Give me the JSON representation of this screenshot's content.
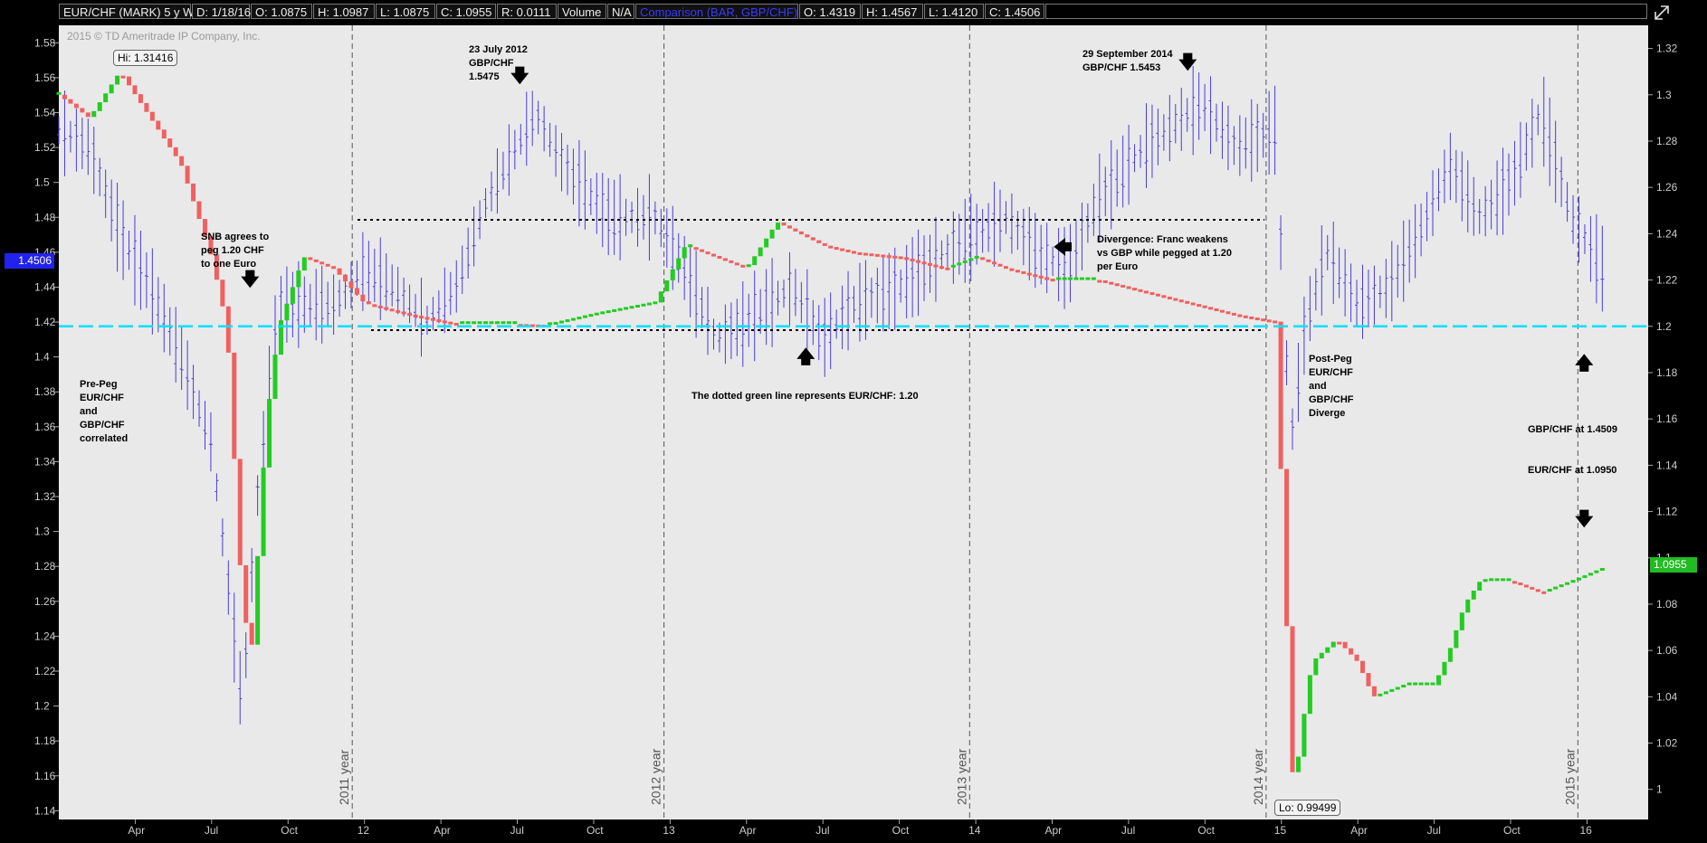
{
  "header": {
    "symbol": "EUR/CHF (MARK) 5 y W",
    "date": "D: 1/18/16",
    "open": "O: 1.0875",
    "high": "H: 1.0987",
    "low": "L: 1.0875",
    "close": "C: 1.0955",
    "range": "R: 0.0111",
    "volume_label": "Volume",
    "volume_value": "N/A",
    "comparison": "Comparison (BAR, GBP/CHF)",
    "comp_open": "O: 1.4319",
    "comp_high": "H: 1.4567",
    "comp_low": "L: 1.4120",
    "comp_close": "C: 1.4506"
  },
  "watermark": "2015 © TD Ameritrade IP Company, Inc.",
  "colors": {
    "background": "#e9e9e9",
    "up_candle": "#22cc22",
    "down_candle": "#f06060",
    "comparison_bar": "#4b3bd9",
    "peg_line": "#00e0ff",
    "left_price_box": "#2222ee",
    "right_price_box": "#22bb22"
  },
  "badges": {
    "high": "Hi: 1.31416",
    "low": "Lo: 0.99499",
    "left_current": "1.4506",
    "right_current": "1.0955"
  },
  "annotations": {
    "pre_peg": "Pre-Peg\nEUR/CHF\nand\nGBP/CHF\ncorrelated",
    "snb": "SNB agrees to\npeg 1.20 CHF\nto one Euro",
    "july2012": "23 July 2012\nGBP/CHF\n1.5475",
    "sept2014": "29 September 2014\nGBP/CHF 1.5453",
    "divergence": "Divergence: Franc weakens\nvs GBP while pegged at 1.20\nper Euro",
    "dotted": "The dotted green line represents EUR/CHF: 1.20",
    "post_peg": "Post-Peg\nEUR/CHF\nand\nGBP/CHF\nDiverge",
    "gbp_now": "GBP/CHF at 1.4509",
    "eur_now": "EUR/CHF at 1.0950"
  },
  "chart_data": {
    "type": "bar",
    "title": "EUR/CHF (MARK) 5 y W",
    "comparison_series_name": "GBP/CHF",
    "left_axis_ticks": [
      "1.58",
      "1.56",
      "1.54",
      "1.52",
      "1.5",
      "1.48",
      "1.46",
      "1.44",
      "1.42",
      "1.4",
      "1.38",
      "1.36",
      "1.34",
      "1.32",
      "1.3",
      "1.28",
      "1.26",
      "1.24",
      "1.22",
      "1.2",
      "1.18",
      "1.16",
      "1.14"
    ],
    "left_axis_range": [
      1.135,
      1.59
    ],
    "right_axis_ticks": [
      "1.32",
      "1.3",
      "1.28",
      "1.26",
      "1.24",
      "1.22",
      "1.2",
      "1.18",
      "1.16",
      "1.14",
      "1.12",
      "1.1",
      "1.08",
      "1.06",
      "1.04",
      "1.02",
      "1"
    ],
    "right_axis_range": [
      0.987,
      1.33
    ],
    "x_tick_labels": [
      "Apr",
      "Jul",
      "Oct",
      "12",
      "Apr",
      "Jul",
      "Oct",
      "13",
      "Apr",
      "Jul",
      "Oct",
      "14",
      "Apr",
      "Jul",
      "Oct",
      "15",
      "Apr",
      "Jul",
      "Oct",
      "16"
    ],
    "year_labels": [
      "2011 year",
      "2012 year",
      "2013 year",
      "2014 year",
      "2015 year"
    ],
    "peg_level": 1.2,
    "eurchf_weekly_path": [
      [
        2011.0,
        1.3
      ],
      [
        2011.1,
        1.29
      ],
      [
        2011.2,
        1.31
      ],
      [
        2011.3,
        1.29
      ],
      [
        2011.4,
        1.27
      ],
      [
        2011.5,
        1.23
      ],
      [
        2011.55,
        1.2
      ],
      [
        2011.6,
        1.08
      ],
      [
        2011.63,
        1.06
      ],
      [
        2011.68,
        1.16
      ],
      [
        2011.72,
        1.2
      ],
      [
        2011.8,
        1.23
      ],
      [
        2011.9,
        1.225
      ],
      [
        2012.0,
        1.21
      ],
      [
        2012.15,
        1.205
      ],
      [
        2012.3,
        1.201
      ],
      [
        2012.5,
        1.201
      ],
      [
        2012.6,
        1.2005
      ],
      [
        2012.75,
        1.205
      ],
      [
        2012.95,
        1.21
      ],
      [
        2013.05,
        1.235
      ],
      [
        2013.15,
        1.23
      ],
      [
        2013.25,
        1.225
      ],
      [
        2013.35,
        1.245
      ],
      [
        2013.5,
        1.235
      ],
      [
        2013.6,
        1.232
      ],
      [
        2013.75,
        1.23
      ],
      [
        2013.9,
        1.225
      ],
      [
        2014.0,
        1.23
      ],
      [
        2014.1,
        1.225
      ],
      [
        2014.25,
        1.22
      ],
      [
        2014.4,
        1.22
      ],
      [
        2014.55,
        1.215
      ],
      [
        2014.7,
        1.21
      ],
      [
        2014.85,
        1.205
      ],
      [
        2014.98,
        1.202
      ],
      [
        2015.02,
        1.06
      ],
      [
        2015.04,
        0.995
      ],
      [
        2015.06,
        1.02
      ],
      [
        2015.1,
        1.055
      ],
      [
        2015.18,
        1.065
      ],
      [
        2015.25,
        1.055
      ],
      [
        2015.3,
        1.04
      ],
      [
        2015.4,
        1.045
      ],
      [
        2015.5,
        1.045
      ],
      [
        2015.55,
        1.06
      ],
      [
        2015.6,
        1.08
      ],
      [
        2015.65,
        1.09
      ],
      [
        2015.75,
        1.09
      ],
      [
        2015.85,
        1.085
      ],
      [
        2015.95,
        1.09
      ],
      [
        2016.05,
        1.0955
      ]
    ],
    "gbpchf_weekly_path": [
      [
        2011.0,
        1.53
      ],
      [
        2011.1,
        1.52
      ],
      [
        2011.2,
        1.47
      ],
      [
        2011.3,
        1.44
      ],
      [
        2011.4,
        1.4
      ],
      [
        2011.5,
        1.35
      ],
      [
        2011.6,
        1.2
      ],
      [
        2011.65,
        1.32
      ],
      [
        2011.72,
        1.43
      ],
      [
        2011.8,
        1.43
      ],
      [
        2011.9,
        1.43
      ],
      [
        2012.0,
        1.45
      ],
      [
        2012.1,
        1.44
      ],
      [
        2012.2,
        1.42
      ],
      [
        2012.3,
        1.44
      ],
      [
        2012.4,
        1.49
      ],
      [
        2012.56,
        1.54
      ],
      [
        2012.65,
        1.51
      ],
      [
        2012.8,
        1.48
      ],
      [
        2012.95,
        1.48
      ],
      [
        2013.05,
        1.45
      ],
      [
        2013.15,
        1.41
      ],
      [
        2013.25,
        1.42
      ],
      [
        2013.4,
        1.44
      ],
      [
        2013.5,
        1.41
      ],
      [
        2013.6,
        1.43
      ],
      [
        2013.75,
        1.44
      ],
      [
        2013.9,
        1.46
      ],
      [
        2014.0,
        1.47
      ],
      [
        2014.1,
        1.48
      ],
      [
        2014.2,
        1.46
      ],
      [
        2014.3,
        1.45
      ],
      [
        2014.4,
        1.49
      ],
      [
        2014.55,
        1.52
      ],
      [
        2014.74,
        1.545
      ],
      [
        2014.85,
        1.52
      ],
      [
        2014.98,
        1.53
      ],
      [
        2015.03,
        1.35
      ],
      [
        2015.08,
        1.42
      ],
      [
        2015.15,
        1.46
      ],
      [
        2015.25,
        1.43
      ],
      [
        2015.35,
        1.44
      ],
      [
        2015.45,
        1.47
      ],
      [
        2015.55,
        1.51
      ],
      [
        2015.65,
        1.48
      ],
      [
        2015.75,
        1.5
      ],
      [
        2015.85,
        1.54
      ],
      [
        2015.95,
        1.48
      ],
      [
        2016.05,
        1.4506
      ]
    ]
  }
}
